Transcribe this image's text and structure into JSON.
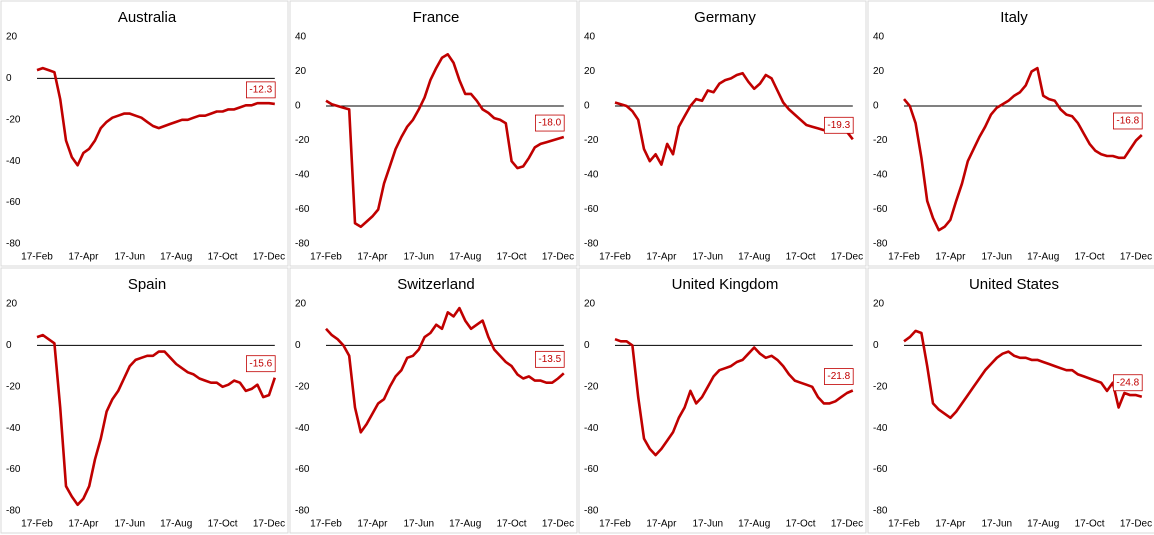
{
  "chart_data": [
    {
      "type": "line",
      "title": "Australia",
      "color": "#c00000",
      "ylim": [
        -80,
        20
      ],
      "yticks": [
        20,
        0,
        -20,
        -40,
        -60,
        -80
      ],
      "categories": [
        "17-Feb",
        null,
        null,
        null,
        null,
        null,
        null,
        null,
        "17-Apr",
        null,
        null,
        null,
        null,
        null,
        null,
        null,
        "17-Jun",
        null,
        null,
        null,
        null,
        null,
        null,
        null,
        "17-Aug",
        null,
        null,
        null,
        null,
        null,
        null,
        null,
        "17-Oct",
        null,
        null,
        null,
        null,
        null,
        null,
        null,
        "17-Dec",
        null
      ],
      "values": [
        4,
        5,
        4,
        3,
        -10,
        -30,
        -38,
        -42,
        -36,
        -34,
        -30,
        -24,
        -21,
        -19,
        -18,
        -17,
        -17,
        -18,
        -19,
        -21,
        -23,
        -24,
        -23,
        -22,
        -21,
        -20,
        -20,
        -19,
        -18,
        -18,
        -17,
        -16,
        -16,
        -15,
        -15,
        -14,
        -13,
        -13,
        -12,
        -12,
        -12,
        -12.3
      ],
      "value_labels": [
        null,
        null,
        null,
        null,
        null,
        null,
        null,
        null,
        null,
        null,
        null,
        null,
        null,
        null,
        null,
        null,
        null,
        null,
        null,
        null,
        null,
        null,
        null,
        null,
        null,
        null,
        null,
        null,
        null,
        null,
        null,
        null,
        null,
        null,
        null,
        null,
        null,
        null,
        null,
        null,
        null,
        "-12.3"
      ]
    },
    {
      "type": "line",
      "title": "France",
      "color": "#c00000",
      "ylim": [
        -80,
        40
      ],
      "yticks": [
        40,
        20,
        0,
        -20,
        -40,
        -60,
        -80
      ],
      "categories": [
        "17-Feb",
        null,
        null,
        null,
        null,
        null,
        null,
        null,
        "17-Apr",
        null,
        null,
        null,
        null,
        null,
        null,
        null,
        "17-Jun",
        null,
        null,
        null,
        null,
        null,
        null,
        null,
        "17-Aug",
        null,
        null,
        null,
        null,
        null,
        null,
        null,
        "17-Oct",
        null,
        null,
        null,
        null,
        null,
        null,
        null,
        "17-Dec",
        null
      ],
      "values": [
        3,
        1,
        0,
        -1,
        -2,
        -68,
        -70,
        -67,
        -64,
        -60,
        -45,
        -35,
        -25,
        -18,
        -12,
        -8,
        -2,
        5,
        15,
        22,
        28,
        30,
        25,
        15,
        7,
        7,
        3,
        -2,
        -4,
        -7,
        -8,
        -10,
        -32,
        -36,
        -35,
        -30,
        -24,
        -22,
        -21,
        -20,
        -19,
        -18.0
      ],
      "value_labels": [
        null,
        null,
        null,
        null,
        null,
        null,
        null,
        null,
        null,
        null,
        null,
        null,
        null,
        null,
        null,
        null,
        null,
        null,
        null,
        null,
        null,
        null,
        null,
        null,
        null,
        null,
        null,
        null,
        null,
        null,
        null,
        null,
        null,
        null,
        null,
        null,
        null,
        null,
        null,
        null,
        null,
        "-18.0"
      ]
    },
    {
      "type": "line",
      "title": "Germany",
      "color": "#c00000",
      "ylim": [
        -80,
        40
      ],
      "yticks": [
        40,
        20,
        0,
        -20,
        -40,
        -60,
        -80
      ],
      "categories": [
        "17-Feb",
        null,
        null,
        null,
        null,
        null,
        null,
        null,
        "17-Apr",
        null,
        null,
        null,
        null,
        null,
        null,
        null,
        "17-Jun",
        null,
        null,
        null,
        null,
        null,
        null,
        null,
        "17-Aug",
        null,
        null,
        null,
        null,
        null,
        null,
        null,
        "17-Oct",
        null,
        null,
        null,
        null,
        null,
        null,
        null,
        "17-Dec",
        null
      ],
      "values": [
        2,
        1,
        0,
        -3,
        -8,
        -25,
        -32,
        -28,
        -34,
        -22,
        -28,
        -12,
        -6,
        0,
        4,
        3,
        9,
        8,
        13,
        15,
        16,
        18,
        19,
        14,
        10,
        13,
        18,
        16,
        9,
        2,
        -2,
        -5,
        -8,
        -11,
        -12,
        -13,
        -14,
        -14,
        -15,
        -15,
        -15,
        -19.3
      ],
      "value_labels": [
        null,
        null,
        null,
        null,
        null,
        null,
        null,
        null,
        null,
        null,
        null,
        null,
        null,
        null,
        null,
        null,
        null,
        null,
        null,
        null,
        null,
        null,
        null,
        null,
        null,
        null,
        null,
        null,
        null,
        null,
        null,
        null,
        null,
        null,
        null,
        null,
        null,
        null,
        null,
        null,
        null,
        "-19.3"
      ]
    },
    {
      "type": "line",
      "title": "Italy",
      "color": "#c00000",
      "ylim": [
        -80,
        40
      ],
      "yticks": [
        40,
        20,
        0,
        -20,
        -40,
        -60,
        -80
      ],
      "categories": [
        "17-Feb",
        null,
        null,
        null,
        null,
        null,
        null,
        null,
        "17-Apr",
        null,
        null,
        null,
        null,
        null,
        null,
        null,
        "17-Jun",
        null,
        null,
        null,
        null,
        null,
        null,
        null,
        "17-Aug",
        null,
        null,
        null,
        null,
        null,
        null,
        null,
        "17-Oct",
        null,
        null,
        null,
        null,
        null,
        null,
        null,
        "17-Dec",
        null
      ],
      "values": [
        4,
        0,
        -10,
        -30,
        -55,
        -65,
        -72,
        -70,
        -66,
        -55,
        -45,
        -32,
        -25,
        -18,
        -12,
        -5,
        -1,
        1,
        3,
        6,
        8,
        12,
        20,
        22,
        6,
        4,
        3,
        -2,
        -5,
        -6,
        -10,
        -16,
        -22,
        -26,
        -28,
        -29,
        -29,
        -30,
        -30,
        -25,
        -20,
        -16.8
      ],
      "value_labels": [
        null,
        null,
        null,
        null,
        null,
        null,
        null,
        null,
        null,
        null,
        null,
        null,
        null,
        null,
        null,
        null,
        null,
        null,
        null,
        null,
        null,
        null,
        null,
        null,
        null,
        null,
        null,
        null,
        null,
        null,
        null,
        null,
        null,
        null,
        null,
        null,
        null,
        null,
        null,
        null,
        null,
        "-16.8"
      ]
    },
    {
      "type": "line",
      "title": "Spain",
      "color": "#c00000",
      "ylim": [
        -80,
        20
      ],
      "yticks": [
        20,
        0,
        -20,
        -40,
        -60,
        -80
      ],
      "categories": [
        "17-Feb",
        null,
        null,
        null,
        null,
        null,
        null,
        null,
        "17-Apr",
        null,
        null,
        null,
        null,
        null,
        null,
        null,
        "17-Jun",
        null,
        null,
        null,
        null,
        null,
        null,
        null,
        "17-Aug",
        null,
        null,
        null,
        null,
        null,
        null,
        null,
        "17-Oct",
        null,
        null,
        null,
        null,
        null,
        null,
        null,
        "17-Dec",
        null
      ],
      "values": [
        4,
        5,
        3,
        1,
        -30,
        -68,
        -73,
        -77,
        -74,
        -68,
        -55,
        -45,
        -32,
        -26,
        -22,
        -16,
        -10,
        -7,
        -6,
        -5,
        -5,
        -3,
        -3,
        -6,
        -9,
        -11,
        -13,
        -14,
        -16,
        -17,
        -18,
        -18,
        -20,
        -19,
        -17,
        -18,
        -22,
        -21,
        -19,
        -25,
        -24,
        -15.6
      ],
      "value_labels": [
        null,
        null,
        null,
        null,
        null,
        null,
        null,
        null,
        null,
        null,
        null,
        null,
        null,
        null,
        null,
        null,
        null,
        null,
        null,
        null,
        null,
        null,
        null,
        null,
        null,
        null,
        null,
        null,
        null,
        null,
        null,
        null,
        null,
        null,
        null,
        null,
        null,
        null,
        null,
        null,
        null,
        "-15.6"
      ]
    },
    {
      "type": "line",
      "title": "Switzerland",
      "color": "#c00000",
      "ylim": [
        -80,
        20
      ],
      "yticks": [
        20,
        0,
        -20,
        -40,
        -60,
        -80
      ],
      "categories": [
        "17-Feb",
        null,
        null,
        null,
        null,
        null,
        null,
        null,
        "17-Apr",
        null,
        null,
        null,
        null,
        null,
        null,
        null,
        "17-Jun",
        null,
        null,
        null,
        null,
        null,
        null,
        null,
        "17-Aug",
        null,
        null,
        null,
        null,
        null,
        null,
        null,
        "17-Oct",
        null,
        null,
        null,
        null,
        null,
        null,
        null,
        "17-Dec",
        null
      ],
      "values": [
        8,
        5,
        3,
        0,
        -5,
        -30,
        -42,
        -38,
        -33,
        -28,
        -26,
        -20,
        -15,
        -12,
        -6,
        -5,
        -2,
        4,
        6,
        10,
        8,
        16,
        14,
        18,
        12,
        8,
        10,
        12,
        4,
        -2,
        -5,
        -8,
        -10,
        -14,
        -16,
        -15,
        -17,
        -17,
        -18,
        -18,
        -16,
        -13.5
      ],
      "value_labels": [
        null,
        null,
        null,
        null,
        null,
        null,
        null,
        null,
        null,
        null,
        null,
        null,
        null,
        null,
        null,
        null,
        null,
        null,
        null,
        null,
        null,
        null,
        null,
        null,
        null,
        null,
        null,
        null,
        null,
        null,
        null,
        null,
        null,
        null,
        null,
        null,
        null,
        null,
        null,
        null,
        null,
        "-13.5"
      ]
    },
    {
      "type": "line",
      "title": "United Kingdom",
      "color": "#c00000",
      "ylim": [
        -80,
        20
      ],
      "yticks": [
        20,
        0,
        -20,
        -40,
        -60,
        -80
      ],
      "categories": [
        "17-Feb",
        null,
        null,
        null,
        null,
        null,
        null,
        null,
        "17-Apr",
        null,
        null,
        null,
        null,
        null,
        null,
        null,
        "17-Jun",
        null,
        null,
        null,
        null,
        null,
        null,
        null,
        "17-Aug",
        null,
        null,
        null,
        null,
        null,
        null,
        null,
        "17-Oct",
        null,
        null,
        null,
        null,
        null,
        null,
        null,
        "17-Dec",
        null
      ],
      "values": [
        3,
        2,
        2,
        0,
        -25,
        -45,
        -50,
        -53,
        -50,
        -46,
        -42,
        -35,
        -30,
        -22,
        -28,
        -25,
        -20,
        -15,
        -12,
        -11,
        -10,
        -8,
        -7,
        -4,
        -1,
        -4,
        -6,
        -5,
        -7,
        -10,
        -14,
        -17,
        -18,
        -19,
        -20,
        -25,
        -28,
        -28,
        -27,
        -25,
        -23,
        -21.8
      ],
      "value_labels": [
        null,
        null,
        null,
        null,
        null,
        null,
        null,
        null,
        null,
        null,
        null,
        null,
        null,
        null,
        null,
        null,
        null,
        null,
        null,
        null,
        null,
        null,
        null,
        null,
        null,
        null,
        null,
        null,
        null,
        null,
        null,
        null,
        null,
        null,
        null,
        null,
        null,
        null,
        null,
        null,
        null,
        "-21.8"
      ]
    },
    {
      "type": "line",
      "title": "United States",
      "color": "#c00000",
      "ylim": [
        -80,
        20
      ],
      "yticks": [
        20,
        0,
        -20,
        -40,
        -60,
        -80
      ],
      "categories": [
        "17-Feb",
        null,
        null,
        null,
        null,
        null,
        null,
        null,
        "17-Apr",
        null,
        null,
        null,
        null,
        null,
        null,
        null,
        "17-Jun",
        null,
        null,
        null,
        null,
        null,
        null,
        null,
        "17-Aug",
        null,
        null,
        null,
        null,
        null,
        null,
        null,
        "17-Oct",
        null,
        null,
        null,
        null,
        null,
        null,
        null,
        "17-Dec",
        null
      ],
      "values": [
        2,
        4,
        7,
        6,
        -10,
        -28,
        -31,
        -33,
        -35,
        -32,
        -28,
        -24,
        -20,
        -16,
        -12,
        -9,
        -6,
        -4,
        -3,
        -5,
        -6,
        -6,
        -7,
        -7,
        -8,
        -9,
        -10,
        -11,
        -12,
        -12,
        -14,
        -15,
        -16,
        -17,
        -18,
        -22,
        -18,
        -30,
        -23,
        -24,
        -24,
        -24.8
      ],
      "value_labels": [
        null,
        null,
        null,
        null,
        null,
        null,
        null,
        null,
        null,
        null,
        null,
        null,
        null,
        null,
        null,
        null,
        null,
        null,
        null,
        null,
        null,
        null,
        null,
        null,
        null,
        null,
        null,
        null,
        null,
        null,
        null,
        null,
        null,
        null,
        null,
        null,
        null,
        null,
        null,
        null,
        null,
        "-24.8"
      ]
    }
  ]
}
